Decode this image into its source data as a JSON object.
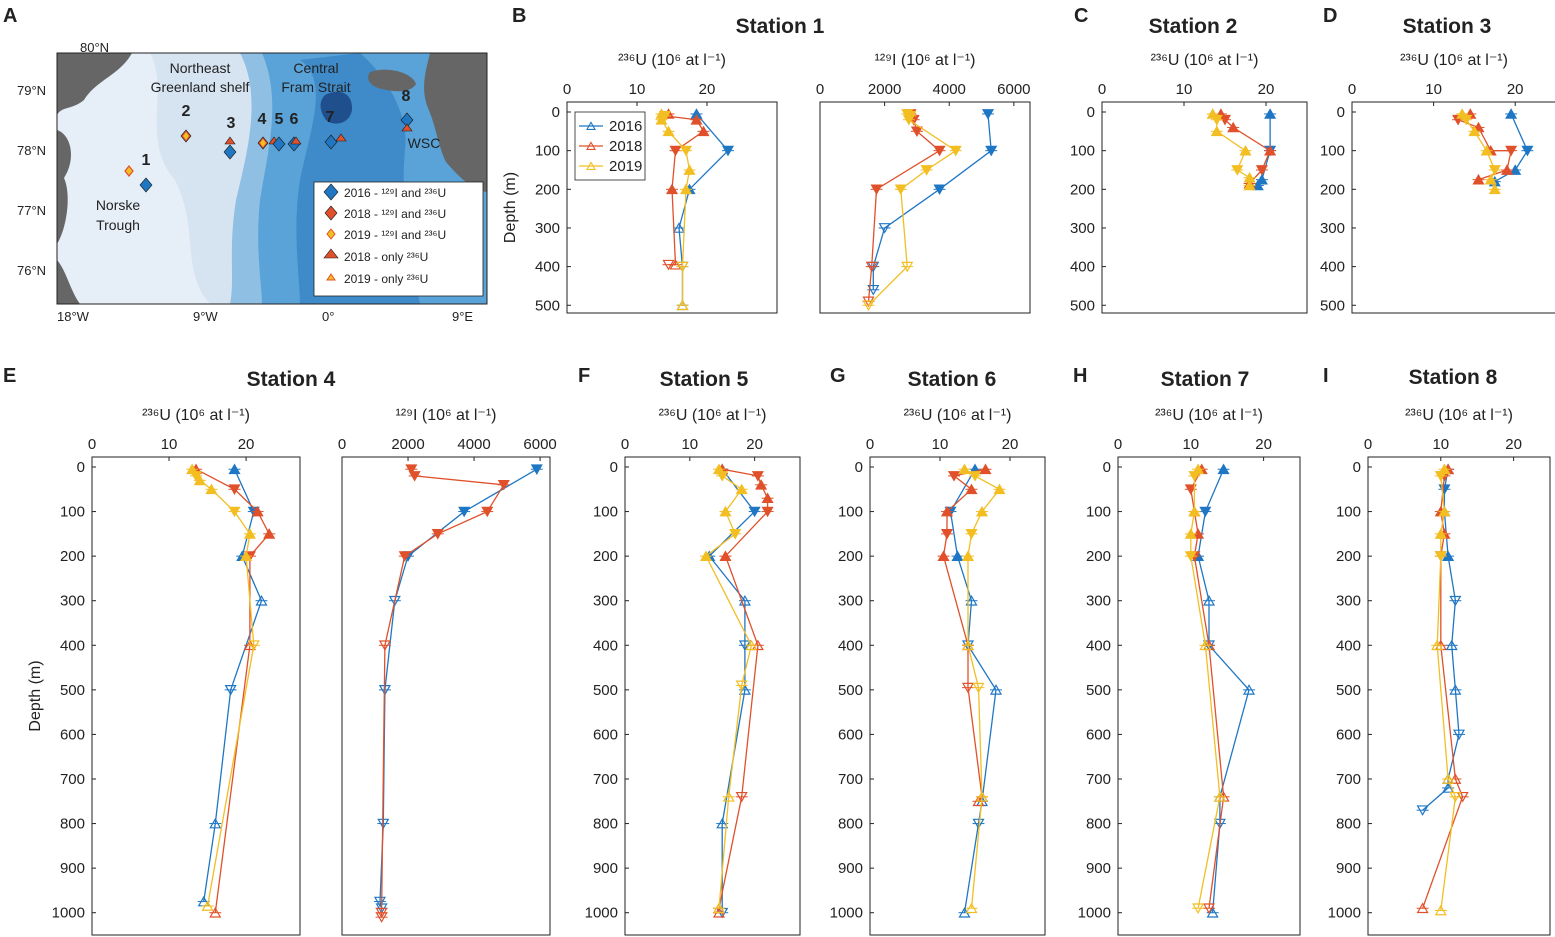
{
  "figure": {
    "panel_letters": [
      "A",
      "B",
      "C",
      "D",
      "E",
      "F",
      "G",
      "H",
      "I"
    ]
  },
  "colors": {
    "y2016": "#1f77c4",
    "y2018": "#e0502a",
    "y2019": "#f2be22",
    "land": "#666666",
    "axis": "#222222"
  },
  "map": {
    "lat_labels": [
      "80°N",
      "79°N",
      "78°N",
      "77°N",
      "76°N"
    ],
    "lon_labels": [
      "18°W",
      "9°W",
      "0°",
      "9°E"
    ],
    "region_labels": {
      "neg1": "Northeast",
      "neg2": "Greenland shelf",
      "cfs1": "Central",
      "cfs2": "Fram Strait",
      "norske1": "Norske",
      "norske2": "Trough",
      "wsc": "WSC"
    },
    "stations": [
      "1",
      "2",
      "3",
      "4",
      "5",
      "6",
      "7",
      "8"
    ],
    "legend": [
      {
        "label": "2016 - ¹²⁹I and ²³⁶U",
        "marker": "diamond",
        "color": "#1f77c4"
      },
      {
        "label": "2018 - ¹²⁹I and ²³⁶U",
        "marker": "diamond",
        "color": "#e0502a"
      },
      {
        "label": "2019 - ¹²⁹I and ²³⁶U",
        "marker": "diamond-small",
        "color": "#f2be22"
      },
      {
        "label": "2018 - only ²³⁶U",
        "marker": "triangle",
        "color": "#e0502a"
      },
      {
        "label": "2019 - only ²³⁶U",
        "marker": "triangle-small",
        "color": "#f2be22"
      }
    ]
  },
  "labels": {
    "u236": "²³⁶U (10⁶ at l⁻¹)",
    "i129": "¹²⁹I (10⁶ at l⁻¹)",
    "depth": "Depth (m)"
  },
  "chart_data": [
    {
      "id": "B-U",
      "type": "line",
      "title": "Station 1",
      "xlabel": "²³⁶U (10⁶ at l⁻¹)",
      "ylabel": "Depth (m)",
      "xlim": [
        0,
        30
      ],
      "ylim": [
        0,
        520
      ],
      "xticks": [
        0,
        10,
        20
      ],
      "yticks": [
        0,
        100,
        200,
        300,
        400,
        500
      ],
      "legend": [
        "2016",
        "2018",
        "2019"
      ],
      "series": [
        {
          "name": "2016",
          "x": [
            18.5,
            23,
            17.5,
            16,
            16.5,
            16.5
          ],
          "y": [
            5,
            100,
            200,
            300,
            400,
            500
          ]
        },
        {
          "name": "2018",
          "x": [
            14.5,
            14,
            18.5,
            19.5,
            15.5,
            15,
            15.5,
            14.5
          ],
          "y": [
            5,
            10,
            20,
            50,
            100,
            200,
            395,
            395
          ]
        },
        {
          "name": "2019",
          "x": [
            13.5,
            14,
            13.5,
            14.5,
            17,
            17.5,
            17,
            16.5,
            16.5
          ],
          "y": [
            5,
            10,
            20,
            50,
            100,
            150,
            200,
            400,
            500
          ]
        }
      ]
    },
    {
      "id": "B-I",
      "type": "line",
      "title": "",
      "xlabel": "¹²⁹I (10⁶ at l⁻¹)",
      "ylabel": "",
      "xlim": [
        0,
        6500
      ],
      "ylim": [
        0,
        520
      ],
      "xticks": [
        0,
        2000,
        4000,
        6000
      ],
      "yticks": [],
      "series": [
        {
          "name": "2016",
          "x": [
            5200,
            5300,
            3700,
            2000,
            1650,
            1650
          ],
          "y": [
            5,
            100,
            200,
            300,
            400,
            460
          ]
        },
        {
          "name": "2018",
          "x": [
            2800,
            2900,
            3000,
            3700,
            1750,
            1600,
            1500
          ],
          "y": [
            5,
            20,
            50,
            100,
            200,
            400,
            490
          ]
        },
        {
          "name": "2019",
          "x": [
            2700,
            2800,
            2750,
            4200,
            3300,
            2500,
            2700,
            1500
          ],
          "y": [
            5,
            10,
            20,
            100,
            150,
            200,
            400,
            500
          ]
        }
      ]
    },
    {
      "id": "C-U",
      "type": "line",
      "title": "Station 2",
      "xlabel": "²³⁶U (10⁶ at l⁻¹)",
      "ylabel": "",
      "xlim": [
        0,
        25
      ],
      "ylim": [
        0,
        520
      ],
      "xticks": [
        0,
        10,
        20
      ],
      "yticks": [
        0,
        100,
        200,
        300,
        400,
        500
      ],
      "series": [
        {
          "name": "2016",
          "x": [
            20.5,
            20.5,
            19.5,
            19
          ],
          "y": [
            5,
            100,
            175,
            190
          ]
        },
        {
          "name": "2018",
          "x": [
            14.5,
            15,
            16,
            20.5,
            19.5,
            18
          ],
          "y": [
            5,
            20,
            40,
            100,
            150,
            185
          ]
        },
        {
          "name": "2019",
          "x": [
            13.5,
            14,
            14,
            17.5,
            16.5,
            18,
            18
          ],
          "y": [
            5,
            20,
            50,
            100,
            150,
            170,
            190
          ]
        }
      ]
    },
    {
      "id": "D-U",
      "type": "line",
      "title": "Station 3",
      "xlabel": "²³⁶U (10⁶ at l⁻¹)",
      "ylabel": "",
      "xlim": [
        0,
        25
      ],
      "ylim": [
        0,
        520
      ],
      "xticks": [
        0,
        10,
        20
      ],
      "yticks": [
        0,
        100,
        200,
        300,
        400,
        500
      ],
      "series": [
        {
          "name": "2016",
          "x": [
            19.5,
            21.5,
            20,
            17.5
          ],
          "y": [
            5,
            100,
            150,
            180
          ]
        },
        {
          "name": "2018",
          "x": [
            14.5,
            13,
            15.5,
            17,
            19.5,
            19,
            15.5
          ],
          "y": [
            5,
            20,
            40,
            100,
            100,
            150,
            175
          ]
        },
        {
          "name": "2019",
          "x": [
            13.5,
            14,
            15,
            16.5,
            17.5,
            17,
            17.5
          ],
          "y": [
            5,
            20,
            50,
            100,
            150,
            175,
            200
          ]
        }
      ]
    },
    {
      "id": "E-U",
      "type": "line",
      "title": "Station 4",
      "xlabel": "²³⁶U (10⁶ at l⁻¹)",
      "ylabel": "Depth (m)",
      "xlim": [
        0,
        27
      ],
      "ylim": [
        0,
        1050
      ],
      "xticks": [
        0,
        10,
        20
      ],
      "yticks": [
        0,
        100,
        200,
        300,
        400,
        500,
        600,
        700,
        800,
        900,
        1000
      ],
      "series": [
        {
          "name": "2016",
          "x": [
            18.5,
            21,
            19.5,
            22,
            18,
            16,
            14.5
          ],
          "y": [
            5,
            100,
            200,
            300,
            500,
            800,
            975
          ]
        },
        {
          "name": "2018",
          "x": [
            13.5,
            18.5,
            21.5,
            23,
            20.5,
            20.5,
            16
          ],
          "y": [
            5,
            50,
            100,
            150,
            200,
            400,
            1000
          ]
        },
        {
          "name": "2019",
          "x": [
            13,
            13.5,
            14,
            15.5,
            18.5,
            20.5,
            20,
            21,
            15
          ],
          "y": [
            5,
            20,
            30,
            50,
            100,
            150,
            200,
            400,
            985
          ]
        }
      ]
    },
    {
      "id": "E-I",
      "type": "line",
      "title": "",
      "xlabel": "¹²⁹I (10⁶ at l⁻¹)",
      "ylabel": "",
      "xlim": [
        0,
        6300
      ],
      "ylim": [
        0,
        1050
      ],
      "xticks": [
        0,
        2000,
        4000,
        6000
      ],
      "yticks": [],
      "series": [
        {
          "name": "2016",
          "x": [
            5900,
            3700,
            2000,
            1600,
            1300,
            1250,
            1150,
            1200
          ],
          "y": [
            5,
            100,
            200,
            300,
            500,
            800,
            975,
            990
          ]
        },
        {
          "name": "2018",
          "x": [
            2100,
            2200,
            4900,
            4400,
            2900,
            1900,
            1300,
            1200,
            1200
          ],
          "y": [
            5,
            20,
            40,
            100,
            150,
            200,
            400,
            1000,
            1010
          ]
        }
      ]
    },
    {
      "id": "F-U",
      "type": "line",
      "title": "Station 5",
      "xlabel": "²³⁶U (10⁶ at l⁻¹)",
      "ylabel": "",
      "xlim": [
        0,
        27
      ],
      "ylim": [
        0,
        1050
      ],
      "xticks": [
        0,
        10,
        20
      ],
      "yticks": [
        0,
        100,
        200,
        300,
        400,
        500,
        600,
        700,
        800,
        900,
        1000
      ],
      "series": [
        {
          "name": "2016",
          "x": [
            15,
            20,
            13,
            18.5,
            18.5,
            18.5,
            15,
            15
          ],
          "y": [
            5,
            100,
            200,
            300,
            400,
            500,
            800,
            1000
          ]
        },
        {
          "name": "2018",
          "x": [
            15,
            20.5,
            21,
            22,
            22,
            15.5,
            20.5,
            18,
            14.5,
            14.5
          ],
          "y": [
            5,
            20,
            40,
            70,
            100,
            200,
            400,
            740,
            990,
            1000
          ]
        },
        {
          "name": "2019",
          "x": [
            14.5,
            15,
            18,
            15.5,
            17,
            12.5,
            19.5,
            18,
            16,
            14.5
          ],
          "y": [
            5,
            20,
            50,
            100,
            150,
            200,
            400,
            490,
            740,
            990
          ]
        }
      ]
    },
    {
      "id": "G-U",
      "type": "line",
      "title": "Station 6",
      "xlabel": "²³⁶U (10⁶ at l⁻¹)",
      "ylabel": "",
      "xlim": [
        0,
        25
      ],
      "ylim": [
        0,
        1050
      ],
      "xticks": [
        0,
        10,
        20
      ],
      "yticks": [
        0,
        100,
        200,
        300,
        400,
        500,
        600,
        700,
        800,
        900,
        1000
      ],
      "series": [
        {
          "name": "2016",
          "x": [
            15,
            11.5,
            12.5,
            14.5,
            14,
            18,
            16,
            15.5,
            13.5
          ],
          "y": [
            5,
            100,
            200,
            300,
            400,
            500,
            750,
            800,
            1000
          ]
        },
        {
          "name": "2018",
          "x": [
            16.5,
            12,
            14.5,
            11,
            11,
            10.5,
            14,
            14,
            16,
            15.5
          ],
          "y": [
            5,
            20,
            50,
            100,
            150,
            200,
            400,
            495,
            740,
            750
          ]
        },
        {
          "name": "2019",
          "x": [
            13.5,
            15,
            18.5,
            16,
            14.5,
            14,
            14,
            15.5,
            16,
            14.5
          ],
          "y": [
            5,
            20,
            50,
            100,
            150,
            200,
            400,
            495,
            740,
            990
          ]
        }
      ]
    },
    {
      "id": "H-U",
      "type": "line",
      "title": "Station 7",
      "xlabel": "²³⁶U (10⁶ at l⁻¹)",
      "ylabel": "",
      "xlim": [
        0,
        25
      ],
      "ylim": [
        0,
        1050
      ],
      "xticks": [
        0,
        10,
        20
      ],
      "yticks": [
        0,
        100,
        200,
        300,
        400,
        500,
        600,
        700,
        800,
        900,
        1000
      ],
      "series": [
        {
          "name": "2016",
          "x": [
            14.5,
            12,
            11,
            12.5,
            12.5,
            18,
            14,
            14,
            13
          ],
          "y": [
            5,
            100,
            200,
            300,
            400,
            500,
            740,
            800,
            1000
          ]
        },
        {
          "name": "2018",
          "x": [
            11.5,
            10,
            10.5,
            11,
            10.5,
            12.5,
            14.5,
            12.5
          ],
          "y": [
            5,
            50,
            100,
            150,
            200,
            400,
            740,
            990
          ]
        },
        {
          "name": "2019",
          "x": [
            11,
            10.5,
            10.5,
            10,
            10,
            12,
            14,
            11
          ],
          "y": [
            5,
            20,
            100,
            150,
            200,
            400,
            740,
            990
          ]
        }
      ]
    },
    {
      "id": "I-U",
      "type": "line",
      "title": "Station 8",
      "xlabel": "²³⁶U (10⁶ at l⁻¹)",
      "ylabel": "",
      "xlim": [
        0,
        25
      ],
      "ylim": [
        0,
        1050
      ],
      "xticks": [
        0,
        10,
        20
      ],
      "yticks": [
        0,
        100,
        200,
        300,
        400,
        500,
        600,
        700,
        800,
        900,
        1000
      ],
      "series": [
        {
          "name": "2016",
          "x": [
            11,
            10.5,
            10.5,
            11,
            12,
            11.5,
            12,
            12.5,
            11,
            11,
            7.5
          ],
          "y": [
            5,
            50,
            100,
            200,
            300,
            400,
            500,
            600,
            700,
            720,
            770
          ]
        },
        {
          "name": "2018",
          "x": [
            11,
            10.5,
            10,
            10.5,
            10,
            10,
            12,
            13,
            7.5
          ],
          "y": [
            5,
            20,
            100,
            150,
            200,
            400,
            700,
            740,
            990
          ]
        },
        {
          "name": "2019",
          "x": [
            10.5,
            10,
            10.5,
            10,
            10,
            9.5,
            11,
            12,
            10
          ],
          "y": [
            5,
            20,
            100,
            150,
            200,
            400,
            700,
            740,
            995
          ]
        }
      ]
    }
  ]
}
